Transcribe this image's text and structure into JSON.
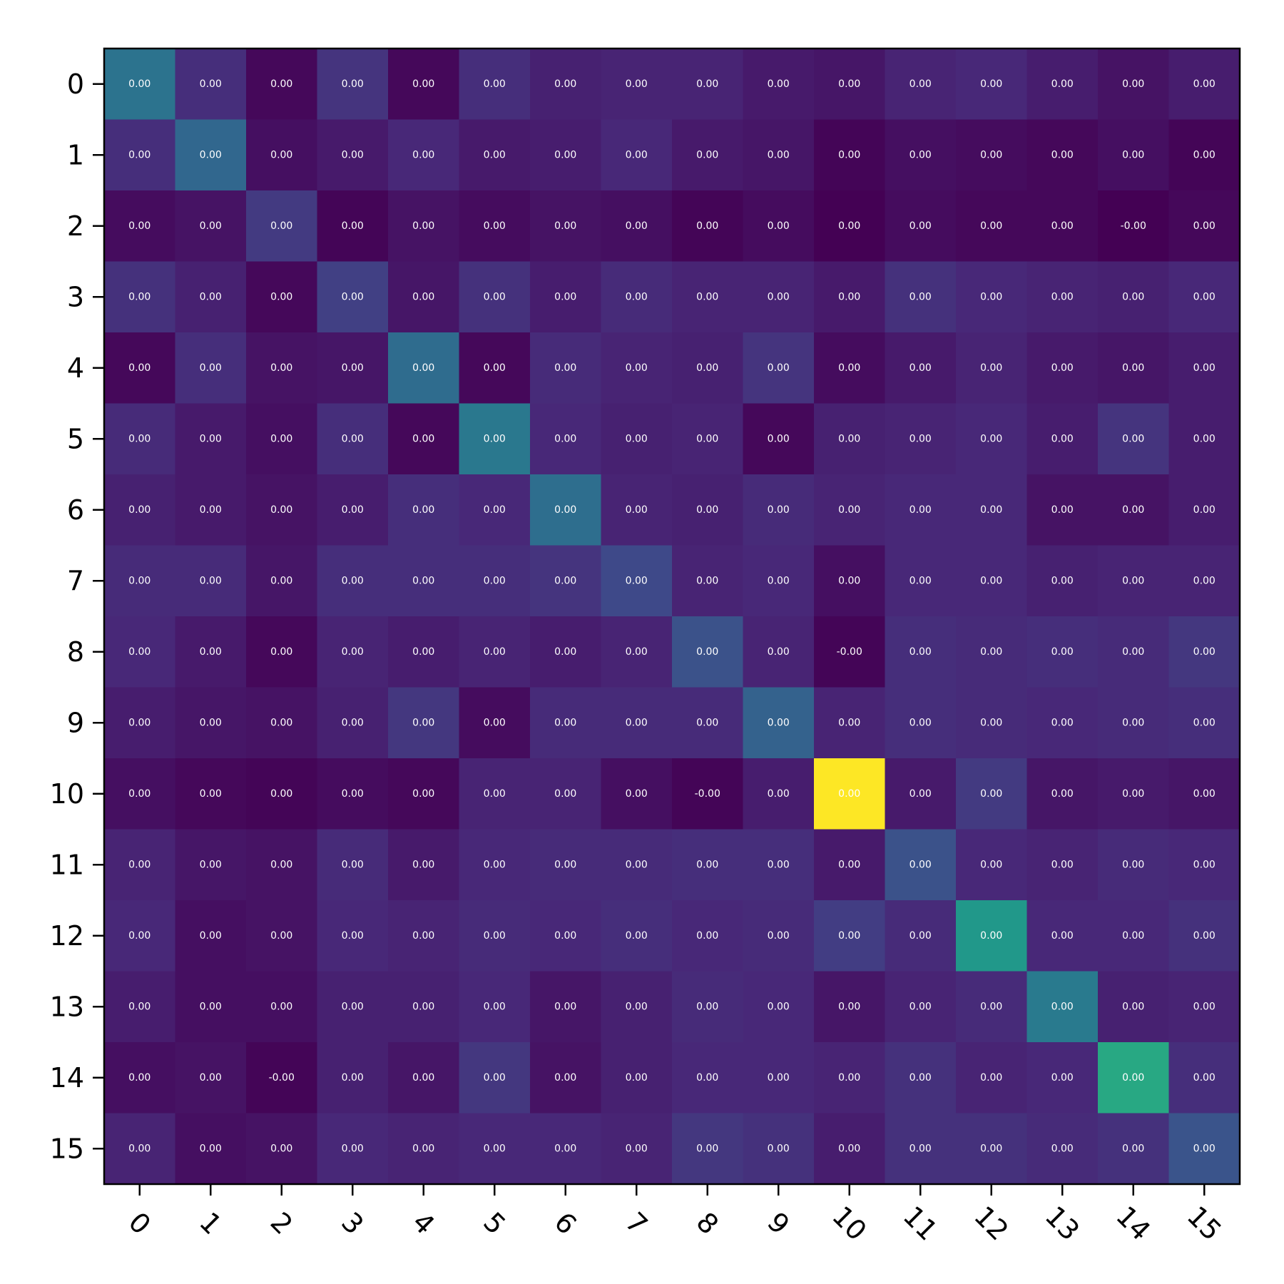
{
  "chart_data": {
    "type": "heatmap",
    "title": "",
    "xlabel": "",
    "ylabel": "",
    "x_categories": [
      "0",
      "1",
      "2",
      "3",
      "4",
      "5",
      "6",
      "7",
      "8",
      "9",
      "10",
      "11",
      "12",
      "13",
      "14",
      "15"
    ],
    "y_categories": [
      "0",
      "1",
      "2",
      "3",
      "4",
      "5",
      "6",
      "7",
      "8",
      "9",
      "10",
      "11",
      "12",
      "13",
      "14",
      "15"
    ],
    "colormap": "viridis",
    "colorbar": false,
    "grid": false,
    "x_tick_rotation_deg": 45,
    "intensity": [
      [
        0.38,
        0.13,
        0.02,
        0.15,
        0.02,
        0.13,
        0.09,
        0.1,
        0.1,
        0.07,
        0.06,
        0.1,
        0.11,
        0.08,
        0.05,
        0.08
      ],
      [
        0.13,
        0.33,
        0.04,
        0.07,
        0.11,
        0.07,
        0.08,
        0.11,
        0.07,
        0.06,
        0.01,
        0.04,
        0.03,
        0.02,
        0.04,
        0.01
      ],
      [
        0.03,
        0.05,
        0.17,
        0.01,
        0.05,
        0.03,
        0.05,
        0.04,
        0.01,
        0.03,
        0.0,
        0.03,
        0.02,
        0.02,
        0.0,
        0.02
      ],
      [
        0.14,
        0.09,
        0.02,
        0.19,
        0.06,
        0.14,
        0.08,
        0.12,
        0.1,
        0.1,
        0.07,
        0.14,
        0.11,
        0.1,
        0.09,
        0.11
      ],
      [
        0.02,
        0.13,
        0.05,
        0.06,
        0.35,
        0.02,
        0.12,
        0.1,
        0.09,
        0.15,
        0.03,
        0.07,
        0.1,
        0.07,
        0.06,
        0.08
      ],
      [
        0.12,
        0.07,
        0.04,
        0.13,
        0.02,
        0.4,
        0.11,
        0.09,
        0.1,
        0.02,
        0.09,
        0.1,
        0.11,
        0.08,
        0.15,
        0.08
      ],
      [
        0.09,
        0.07,
        0.05,
        0.08,
        0.13,
        0.11,
        0.36,
        0.1,
        0.09,
        0.12,
        0.1,
        0.11,
        0.11,
        0.05,
        0.05,
        0.08
      ],
      [
        0.12,
        0.12,
        0.06,
        0.13,
        0.13,
        0.13,
        0.15,
        0.22,
        0.1,
        0.11,
        0.04,
        0.11,
        0.11,
        0.09,
        0.1,
        0.1
      ],
      [
        0.11,
        0.07,
        0.02,
        0.1,
        0.08,
        0.1,
        0.08,
        0.1,
        0.25,
        0.1,
        0.01,
        0.13,
        0.12,
        0.13,
        0.12,
        0.16
      ],
      [
        0.08,
        0.06,
        0.05,
        0.09,
        0.16,
        0.03,
        0.12,
        0.12,
        0.12,
        0.31,
        0.1,
        0.13,
        0.12,
        0.11,
        0.12,
        0.13
      ],
      [
        0.04,
        0.02,
        0.01,
        0.03,
        0.02,
        0.1,
        0.1,
        0.04,
        0.01,
        0.08,
        1.0,
        0.07,
        0.17,
        0.06,
        0.07,
        0.06
      ],
      [
        0.1,
        0.06,
        0.05,
        0.12,
        0.07,
        0.11,
        0.12,
        0.12,
        0.13,
        0.13,
        0.07,
        0.25,
        0.11,
        0.1,
        0.12,
        0.11
      ],
      [
        0.11,
        0.04,
        0.05,
        0.11,
        0.1,
        0.12,
        0.11,
        0.13,
        0.11,
        0.12,
        0.18,
        0.12,
        0.53,
        0.11,
        0.11,
        0.14
      ],
      [
        0.08,
        0.04,
        0.04,
        0.09,
        0.09,
        0.11,
        0.06,
        0.09,
        0.12,
        0.11,
        0.06,
        0.1,
        0.12,
        0.41,
        0.09,
        0.1
      ],
      [
        0.04,
        0.05,
        0.01,
        0.09,
        0.06,
        0.16,
        0.05,
        0.09,
        0.11,
        0.11,
        0.1,
        0.14,
        0.1,
        0.11,
        0.6,
        0.13
      ],
      [
        0.1,
        0.04,
        0.05,
        0.11,
        0.1,
        0.11,
        0.11,
        0.1,
        0.16,
        0.14,
        0.08,
        0.14,
        0.14,
        0.12,
        0.14,
        0.26
      ]
    ],
    "cell_labels": [
      [
        "0.00",
        "0.00",
        "0.00",
        "0.00",
        "0.00",
        "0.00",
        "0.00",
        "0.00",
        "0.00",
        "0.00",
        "0.00",
        "0.00",
        "0.00",
        "0.00",
        "0.00",
        "0.00"
      ],
      [
        "0.00",
        "0.00",
        "0.00",
        "0.00",
        "0.00",
        "0.00",
        "0.00",
        "0.00",
        "0.00",
        "0.00",
        "0.00",
        "0.00",
        "0.00",
        "0.00",
        "0.00",
        "0.00"
      ],
      [
        "0.00",
        "0.00",
        "0.00",
        "0.00",
        "0.00",
        "0.00",
        "0.00",
        "0.00",
        "0.00",
        "0.00",
        "0.00",
        "0.00",
        "0.00",
        "0.00",
        "-0.00",
        "0.00"
      ],
      [
        "0.00",
        "0.00",
        "0.00",
        "0.00",
        "0.00",
        "0.00",
        "0.00",
        "0.00",
        "0.00",
        "0.00",
        "0.00",
        "0.00",
        "0.00",
        "0.00",
        "0.00",
        "0.00"
      ],
      [
        "0.00",
        "0.00",
        "0.00",
        "0.00",
        "0.00",
        "0.00",
        "0.00",
        "0.00",
        "0.00",
        "0.00",
        "0.00",
        "0.00",
        "0.00",
        "0.00",
        "0.00",
        "0.00"
      ],
      [
        "0.00",
        "0.00",
        "0.00",
        "0.00",
        "0.00",
        "0.00",
        "0.00",
        "0.00",
        "0.00",
        "0.00",
        "0.00",
        "0.00",
        "0.00",
        "0.00",
        "0.00",
        "0.00"
      ],
      [
        "0.00",
        "0.00",
        "0.00",
        "0.00",
        "0.00",
        "0.00",
        "0.00",
        "0.00",
        "0.00",
        "0.00",
        "0.00",
        "0.00",
        "0.00",
        "0.00",
        "0.00",
        "0.00"
      ],
      [
        "0.00",
        "0.00",
        "0.00",
        "0.00",
        "0.00",
        "0.00",
        "0.00",
        "0.00",
        "0.00",
        "0.00",
        "0.00",
        "0.00",
        "0.00",
        "0.00",
        "0.00",
        "0.00"
      ],
      [
        "0.00",
        "0.00",
        "0.00",
        "0.00",
        "0.00",
        "0.00",
        "0.00",
        "0.00",
        "0.00",
        "0.00",
        "-0.00",
        "0.00",
        "0.00",
        "0.00",
        "0.00",
        "0.00"
      ],
      [
        "0.00",
        "0.00",
        "0.00",
        "0.00",
        "0.00",
        "0.00",
        "0.00",
        "0.00",
        "0.00",
        "0.00",
        "0.00",
        "0.00",
        "0.00",
        "0.00",
        "0.00",
        "0.00"
      ],
      [
        "0.00",
        "0.00",
        "0.00",
        "0.00",
        "0.00",
        "0.00",
        "0.00",
        "0.00",
        "-0.00",
        "0.00",
        "0.00",
        "0.00",
        "0.00",
        "0.00",
        "0.00",
        "0.00"
      ],
      [
        "0.00",
        "0.00",
        "0.00",
        "0.00",
        "0.00",
        "0.00",
        "0.00",
        "0.00",
        "0.00",
        "0.00",
        "0.00",
        "0.00",
        "0.00",
        "0.00",
        "0.00",
        "0.00"
      ],
      [
        "0.00",
        "0.00",
        "0.00",
        "0.00",
        "0.00",
        "0.00",
        "0.00",
        "0.00",
        "0.00",
        "0.00",
        "0.00",
        "0.00",
        "0.00",
        "0.00",
        "0.00",
        "0.00"
      ],
      [
        "0.00",
        "0.00",
        "0.00",
        "0.00",
        "0.00",
        "0.00",
        "0.00",
        "0.00",
        "0.00",
        "0.00",
        "0.00",
        "0.00",
        "0.00",
        "0.00",
        "0.00",
        "0.00"
      ],
      [
        "0.00",
        "0.00",
        "-0.00",
        "0.00",
        "0.00",
        "0.00",
        "0.00",
        "0.00",
        "0.00",
        "0.00",
        "0.00",
        "0.00",
        "0.00",
        "0.00",
        "0.00",
        "0.00"
      ],
      [
        "0.00",
        "0.00",
        "0.00",
        "0.00",
        "0.00",
        "0.00",
        "0.00",
        "0.00",
        "0.00",
        "0.00",
        "0.00",
        "0.00",
        "0.00",
        "0.00",
        "0.00",
        "0.00"
      ]
    ]
  },
  "colors": {
    "background": "#ffffff",
    "axis": "#000000",
    "cell_label": "#ffffff"
  }
}
